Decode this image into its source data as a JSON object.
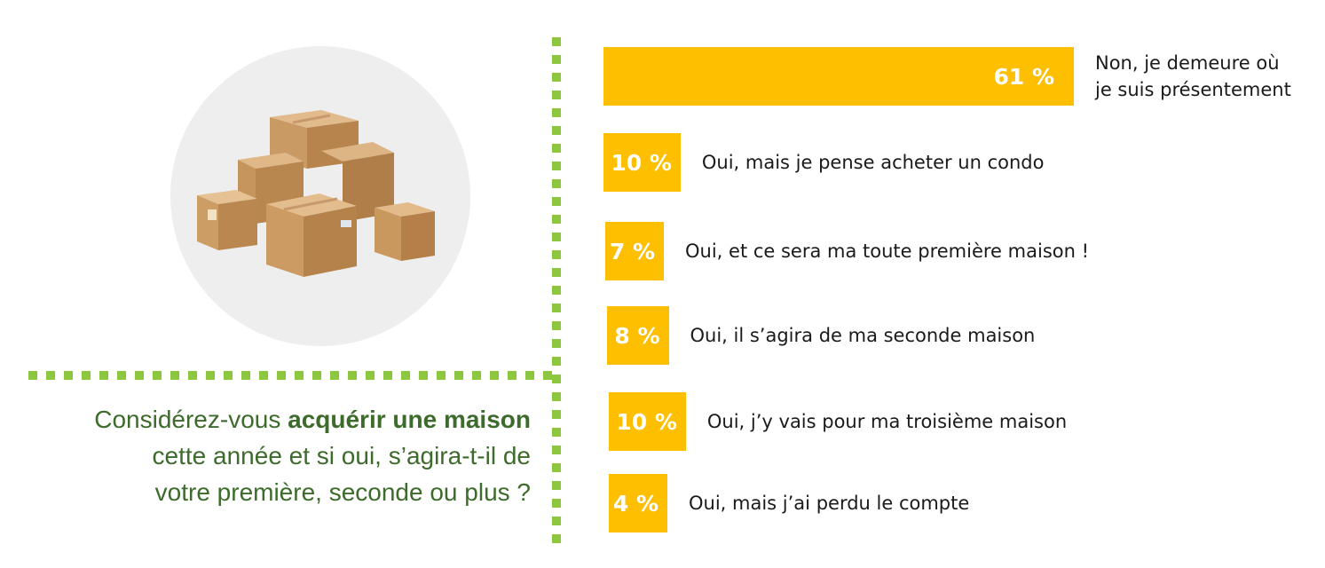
{
  "question": {
    "part1": "Considérez-vous ",
    "bold": "acquérir une maison",
    "line2": "cette année et si oui, s’agira-t-il de",
    "line3": "votre première, seconde ou plus ?"
  },
  "illustration": {
    "icon": "cardboard-boxes-icon",
    "background_color": "#eeeeee"
  },
  "colors": {
    "bar": "#fdbf00",
    "divider": "#8dc63f",
    "question_text": "#3c6b2b"
  },
  "chart_data": {
    "type": "bar",
    "orientation": "horizontal",
    "value_unit": "%",
    "categories": [
      [
        "Non, je demeure où",
        "je suis présentement"
      ],
      [
        "Oui, mais je pense acheter un condo"
      ],
      [
        "Oui, et ce sera ma toute première maison !"
      ],
      [
        "Oui, il s’agira de ma seconde maison"
      ],
      [
        "Oui, j’y vais pour ma troisième maison"
      ],
      [
        "Oui, mais j’ai perdu le compte"
      ]
    ],
    "values": [
      61,
      10,
      7,
      8,
      10,
      4
    ],
    "value_labels": [
      "61 %",
      "10 %",
      "7 %",
      "8 %",
      "10 %",
      "4 %"
    ]
  }
}
